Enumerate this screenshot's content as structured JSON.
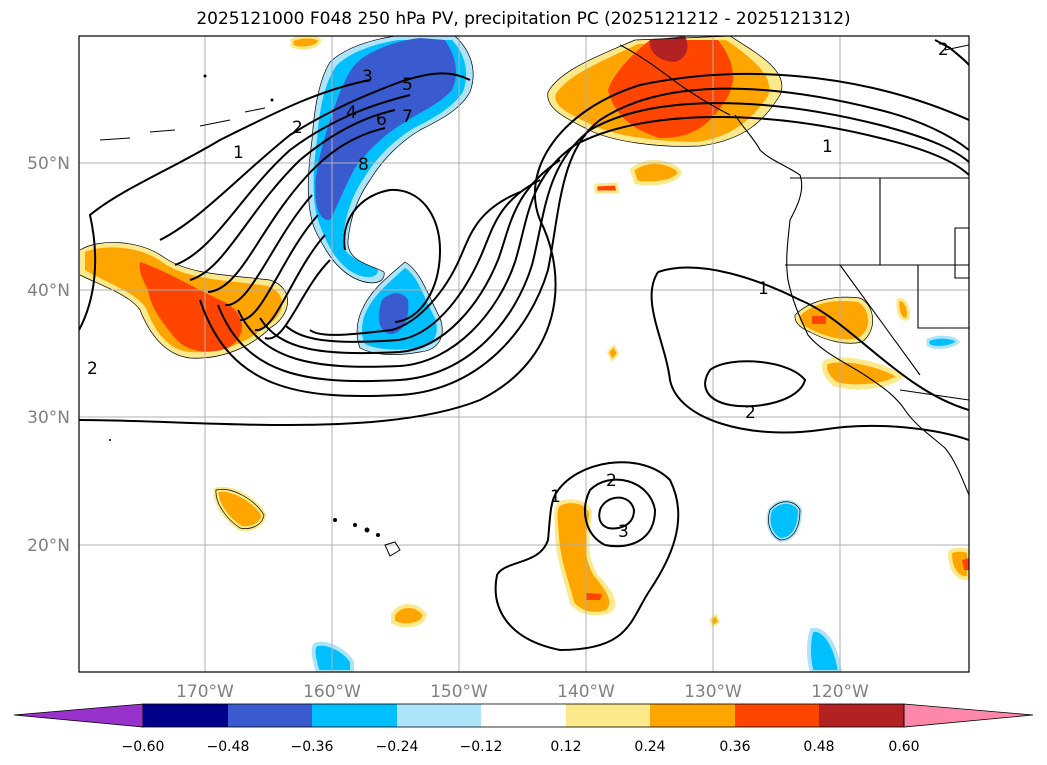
{
  "title": "2025121000 F048 250 hPa PV, precipitation PC (2025121212 - 2025121312)",
  "lat_labels": [
    "50°N",
    "40°N",
    "30°N",
    "20°N"
  ],
  "lon_labels": [
    "170°W",
    "160°W",
    "150°W",
    "140°W",
    "130°W",
    "120°W"
  ],
  "contour_labels": [
    "1",
    "2",
    "3",
    "4",
    "5",
    "6",
    "7",
    "8",
    "1",
    "2",
    "1",
    "2",
    "3",
    "1",
    "2",
    "2"
  ],
  "colorbar": {
    "ticks": [
      "−0.60",
      "−0.48",
      "−0.36",
      "−0.24",
      "−0.12",
      "0.12",
      "0.24",
      "0.36",
      "0.48",
      "0.60"
    ],
    "colors": [
      "#9932cc",
      "#00008b",
      "#3a5bcf",
      "#00bfff",
      "#aee4fa",
      "#ffffff",
      "#fce98b",
      "#ffa500",
      "#ff4500",
      "#b22222",
      "#ff88aa"
    ]
  },
  "colors": {
    "neg_light": "#aee4fa",
    "neg_mid": "#00bfff",
    "neg_strong": "#3a5bcf",
    "pos_light": "#fce98b",
    "pos_mid": "#ffa500",
    "pos_strong": "#ff4500",
    "pos_max": "#b22222",
    "grid": "#b0b0b0"
  }
}
